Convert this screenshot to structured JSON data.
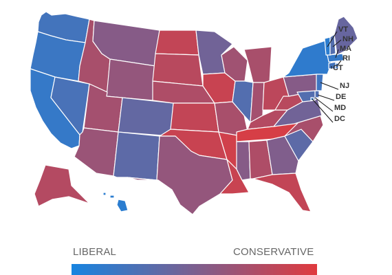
{
  "colors": {
    "liberal": "#1784e0",
    "conservative": "#e03a3e",
    "state_border": "#ffffff",
    "label_text": "#333333"
  },
  "legend": {
    "left_label": "LIBERAL",
    "right_label": "CONSERVATIVE"
  },
  "states": [
    {
      "abbr": "WA",
      "score": 0.22
    },
    {
      "abbr": "OR",
      "score": 0.18
    },
    {
      "abbr": "CA",
      "score": 0.15
    },
    {
      "abbr": "NV",
      "score": 0.25
    },
    {
      "abbr": "ID",
      "score": 0.72
    },
    {
      "abbr": "MT",
      "score": 0.55
    },
    {
      "abbr": "WY",
      "score": 0.62
    },
    {
      "abbr": "UT",
      "score": 0.7
    },
    {
      "abbr": "AZ",
      "score": 0.65
    },
    {
      "abbr": "CO",
      "score": 0.38
    },
    {
      "abbr": "NM",
      "score": 0.35
    },
    {
      "abbr": "ND",
      "score": 0.85
    },
    {
      "abbr": "SD",
      "score": 0.8
    },
    {
      "abbr": "NE",
      "score": 0.75
    },
    {
      "abbr": "KS",
      "score": 0.85
    },
    {
      "abbr": "OK",
      "score": 0.88
    },
    {
      "abbr": "TX",
      "score": 0.62
    },
    {
      "abbr": "MN",
      "score": 0.45
    },
    {
      "abbr": "IA",
      "score": 0.88
    },
    {
      "abbr": "MO",
      "score": 0.72
    },
    {
      "abbr": "AR",
      "score": 0.92
    },
    {
      "abbr": "LA",
      "score": 0.88
    },
    {
      "abbr": "WI",
      "score": 0.68
    },
    {
      "abbr": "IL",
      "score": 0.3
    },
    {
      "abbr": "MI",
      "score": 0.72
    },
    {
      "abbr": "IN",
      "score": 0.7
    },
    {
      "abbr": "OH",
      "score": 0.82
    },
    {
      "abbr": "KY",
      "score": 0.78
    },
    {
      "abbr": "TN",
      "score": 0.95
    },
    {
      "abbr": "MS",
      "score": 0.55
    },
    {
      "abbr": "AL",
      "score": 0.75
    },
    {
      "abbr": "GA",
      "score": 0.52
    },
    {
      "abbr": "FL",
      "score": 0.85
    },
    {
      "abbr": "SC",
      "score": 0.35
    },
    {
      "abbr": "NC",
      "score": 0.72
    },
    {
      "abbr": "VA",
      "score": 0.45
    },
    {
      "abbr": "WV",
      "score": 0.8
    },
    {
      "abbr": "PA",
      "score": 0.55
    },
    {
      "abbr": "NY",
      "score": 0.12
    },
    {
      "abbr": "NJ",
      "score": 0.2
    },
    {
      "abbr": "DE",
      "score": 0.28
    },
    {
      "abbr": "MD",
      "score": 0.3
    },
    {
      "abbr": "DC",
      "score": 0.1
    },
    {
      "abbr": "CT",
      "score": 0.22
    },
    {
      "abbr": "RI",
      "score": 0.2
    },
    {
      "abbr": "MA",
      "score": 0.15
    },
    {
      "abbr": "VT",
      "score": 0.1
    },
    {
      "abbr": "NH",
      "score": 0.3
    },
    {
      "abbr": "ME",
      "score": 0.4
    },
    {
      "abbr": "AK",
      "score": 0.78
    },
    {
      "abbr": "HI",
      "score": 0.1
    }
  ],
  "callouts": [
    {
      "abbr": "VT"
    },
    {
      "abbr": "NH"
    },
    {
      "abbr": "MA"
    },
    {
      "abbr": "RI"
    },
    {
      "abbr": "CT"
    },
    {
      "abbr": "NJ"
    },
    {
      "abbr": "DE"
    },
    {
      "abbr": "MD"
    },
    {
      "abbr": "DC"
    }
  ]
}
